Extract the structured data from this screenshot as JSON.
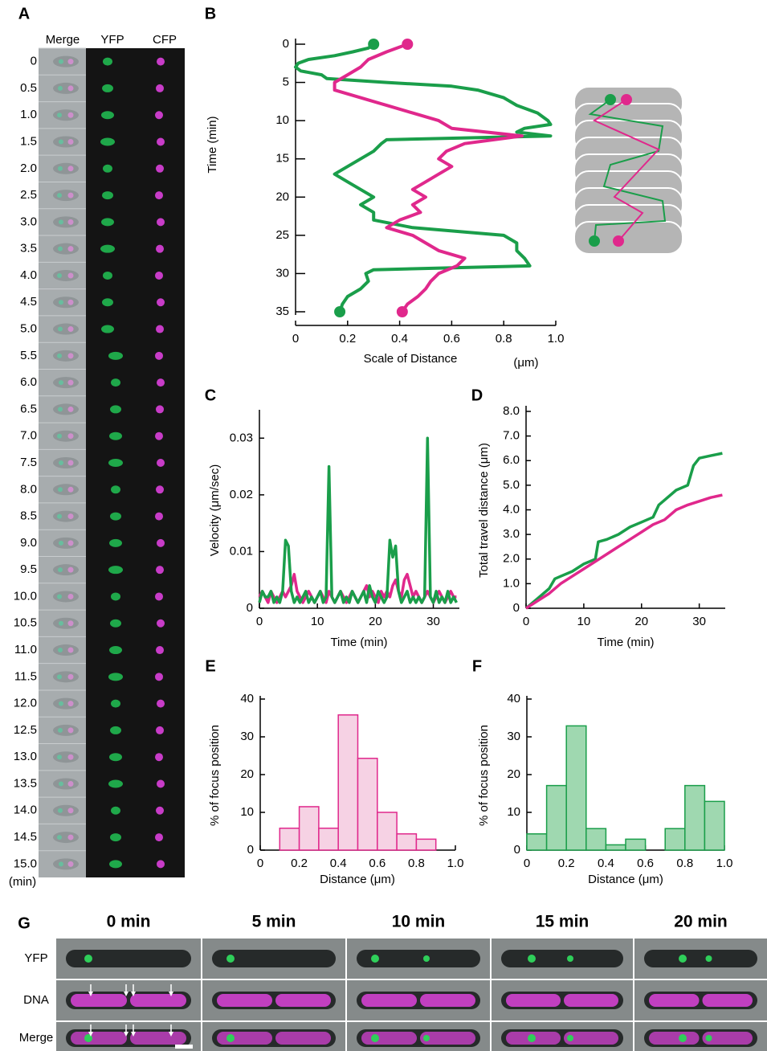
{
  "panel_labels": [
    "A",
    "B",
    "C",
    "D",
    "E",
    "F",
    "G"
  ],
  "panel_a": {
    "columns": [
      "Merge",
      "YFP",
      "CFP"
    ],
    "times": [
      "0",
      "0.5",
      "1.0",
      "1.5",
      "2.0",
      "2.5",
      "3.0",
      "3.5",
      "4.0",
      "4.5",
      "5.0",
      "5.5",
      "6.0",
      "6.5",
      "7.0",
      "7.5",
      "8.0",
      "8.5",
      "9.0",
      "9.5",
      "10.0",
      "10.5",
      "11.0",
      "11.5",
      "12.0",
      "12.5",
      "13.0",
      "13.5",
      "14.0",
      "14.5",
      "15.0"
    ],
    "unit": "(min)"
  },
  "panel_g": {
    "times": [
      "0 min",
      "5 min",
      "10 min",
      "15 min",
      "20 min"
    ],
    "rows": [
      "YFP",
      "DNA",
      "Merge"
    ]
  },
  "chart_data": [
    {
      "type": "trajectory",
      "ylabel": "Time (min)",
      "xlabel": "Scale of Distance",
      "x_unit": "(μm)",
      "xlim": [
        0,
        1
      ],
      "xticks": [
        0,
        0.2,
        0.4,
        0.6,
        0.8,
        {
          "value": 1,
          "label": "1.0"
        }
      ],
      "ylim": [
        0,
        35
      ],
      "y_reversed": true,
      "yticks": [
        0,
        5,
        10,
        15,
        20,
        25,
        30,
        35
      ],
      "series": [
        {
          "color": "#1a9e4a",
          "y": [
            0,
            0.5,
            1,
            1.5,
            2,
            2.5,
            3,
            3.5,
            4,
            4.5,
            5,
            5.5,
            6,
            7,
            8,
            9,
            10,
            10.5,
            11,
            11.5,
            12,
            12.5,
            13,
            14,
            15,
            16,
            17,
            18,
            19,
            20,
            21,
            22,
            23,
            24,
            25,
            26,
            27,
            28,
            29,
            29.5,
            30,
            31,
            32,
            33,
            34,
            35
          ],
          "x": [
            0.3,
            0.28,
            0.22,
            0.15,
            0.05,
            0.01,
            0.0,
            0.02,
            0.1,
            0.12,
            0.35,
            0.6,
            0.7,
            0.8,
            0.85,
            0.93,
            0.97,
            0.98,
            0.88,
            0.85,
            0.98,
            0.35,
            0.33,
            0.3,
            0.25,
            0.2,
            0.15,
            0.2,
            0.25,
            0.3,
            0.25,
            0.3,
            0.3,
            0.45,
            0.8,
            0.85,
            0.85,
            0.88,
            0.9,
            0.3,
            0.27,
            0.28,
            0.25,
            0.2,
            0.18,
            0.17
          ]
        },
        {
          "color": "#e0288c",
          "y": [
            0,
            1,
            2,
            3,
            4,
            5,
            6,
            7,
            8,
            9,
            10,
            11,
            12,
            13,
            14,
            15,
            16,
            17,
            18,
            19,
            20,
            21,
            22,
            23,
            24,
            25,
            26,
            27,
            28,
            29,
            30,
            31,
            32,
            33,
            34,
            35
          ],
          "x": [
            0.43,
            0.35,
            0.28,
            0.25,
            0.2,
            0.15,
            0.15,
            0.25,
            0.35,
            0.45,
            0.55,
            0.6,
            0.87,
            0.65,
            0.58,
            0.55,
            0.6,
            0.55,
            0.5,
            0.45,
            0.5,
            0.45,
            0.48,
            0.4,
            0.35,
            0.45,
            0.5,
            0.55,
            0.65,
            0.62,
            0.55,
            0.52,
            0.5,
            0.47,
            0.43,
            0.41
          ]
        }
      ]
    },
    {
      "type": "line",
      "ylabel": "Velocity  (μm/sec)",
      "xlabel": "Time (min)",
      "xlim": [
        0,
        34.5
      ],
      "xticks": [
        0,
        10,
        20,
        30
      ],
      "ylim": [
        0,
        0.035
      ],
      "yticks": [
        0,
        0.01,
        0.02,
        0.03
      ],
      "series": [
        {
          "color": "#e0288c",
          "x": [
            0,
            0.5,
            1,
            1.5,
            2,
            2.5,
            3,
            3.5,
            4,
            4.5,
            5,
            5.5,
            6,
            6.5,
            7,
            7.5,
            8,
            8.5,
            9,
            9.5,
            10,
            10.5,
            11,
            11.5,
            12,
            12.5,
            13,
            13.5,
            14,
            14.5,
            15,
            15.5,
            16,
            16.5,
            17,
            17.5,
            18,
            18.5,
            19,
            19.5,
            20,
            20.5,
            21,
            21.5,
            22,
            22.5,
            23,
            23.5,
            24,
            24.5,
            25,
            25.5,
            26,
            26.5,
            27,
            27.5,
            28,
            28.5,
            29,
            29.5,
            30,
            30.5,
            31,
            31.5,
            32,
            32.5,
            33,
            33.5,
            34
          ],
          "values": [
            0.002,
            0.003,
            0.002,
            0.001,
            0.003,
            0.002,
            0.001,
            0.002,
            0.003,
            0.002,
            0.003,
            0.004,
            0.006,
            0.003,
            0.002,
            0.001,
            0.002,
            0.003,
            0.002,
            0.001,
            0.002,
            0.003,
            0.002,
            0.001,
            0.003,
            0.002,
            0.001,
            0.002,
            0.003,
            0.002,
            0.001,
            0.002,
            0.003,
            0.002,
            0.001,
            0.002,
            0.003,
            0.004,
            0.002,
            0.003,
            0.002,
            0.001,
            0.003,
            0.002,
            0.003,
            0.002,
            0.004,
            0.005,
            0.003,
            0.002,
            0.005,
            0.006,
            0.004,
            0.002,
            0.003,
            0.002,
            0.001,
            0.002,
            0.003,
            0.002,
            0.001,
            0.002,
            0.003,
            0.002,
            0.001,
            0.002,
            0.003,
            0.002,
            0.002
          ]
        },
        {
          "color": "#1a9e4a",
          "x": [
            0,
            0.5,
            1,
            1.5,
            2,
            2.5,
            3,
            3.5,
            4,
            4.5,
            5,
            5.5,
            6,
            6.5,
            7,
            7.5,
            8,
            8.5,
            9,
            9.5,
            10,
            10.5,
            11,
            11.5,
            12,
            12.5,
            13,
            13.5,
            14,
            14.5,
            15,
            15.5,
            16,
            16.5,
            17,
            17.5,
            18,
            18.5,
            19,
            19.5,
            20,
            20.5,
            21,
            21.5,
            22,
            22.5,
            23,
            23.5,
            24,
            24.5,
            25,
            25.5,
            26,
            26.5,
            27,
            27.5,
            28,
            28.5,
            29,
            29.5,
            30,
            30.5,
            31,
            31.5,
            32,
            32.5,
            33,
            33.5,
            34
          ],
          "values": [
            0.001,
            0.003,
            0.002,
            0.002,
            0.003,
            0.001,
            0.002,
            0.001,
            0.003,
            0.012,
            0.011,
            0.003,
            0.001,
            0.002,
            0.001,
            0.002,
            0.003,
            0.001,
            0.002,
            0.001,
            0.002,
            0.003,
            0.001,
            0.002,
            0.025,
            0.002,
            0.001,
            0.002,
            0.003,
            0.001,
            0.002,
            0.001,
            0.003,
            0.002,
            0.001,
            0.002,
            0.003,
            0.001,
            0.004,
            0.002,
            0.001,
            0.003,
            0.002,
            0.001,
            0.002,
            0.012,
            0.009,
            0.011,
            0.003,
            0.001,
            0.002,
            0.003,
            0.001,
            0.002,
            0.001,
            0.002,
            0.001,
            0.002,
            0.03,
            0.002,
            0.001,
            0.003,
            0.001,
            0.002,
            0.001,
            0.003,
            0.001,
            0.002,
            0.001
          ]
        }
      ]
    },
    {
      "type": "line",
      "ylabel": "Total travel distance  (μm)",
      "xlabel": "Time (min)",
      "xlim": [
        0,
        34.5
      ],
      "xticks": [
        0,
        10,
        20,
        30
      ],
      "ylim": [
        0,
        8
      ],
      "yticks": [
        0,
        {
          "value": 1,
          "label": "1.0"
        },
        {
          "value": 2,
          "label": "2.0"
        },
        {
          "value": 3,
          "label": "3.0"
        },
        {
          "value": 4,
          "label": "4.0"
        },
        {
          "value": 5,
          "label": "5.0"
        },
        {
          "value": 6,
          "label": "6.0"
        },
        {
          "value": 7,
          "label": "7.0"
        },
        {
          "value": 8,
          "label": "8.0"
        }
      ],
      "series": [
        {
          "color": "#1a9e4a",
          "x": [
            0,
            2,
            4,
            5,
            6,
            8,
            10,
            12,
            12.5,
            14,
            16,
            18,
            20,
            22,
            23,
            24,
            26,
            28,
            29,
            30,
            32,
            34
          ],
          "values": [
            0,
            0.4,
            0.8,
            1.2,
            1.3,
            1.5,
            1.8,
            2.0,
            2.7,
            2.8,
            3.0,
            3.3,
            3.5,
            3.7,
            4.2,
            4.4,
            4.8,
            5.0,
            5.8,
            6.1,
            6.2,
            6.3
          ]
        },
        {
          "color": "#e0288c",
          "x": [
            0,
            2,
            4,
            6,
            8,
            10,
            12,
            14,
            16,
            18,
            20,
            22,
            24,
            26,
            28,
            30,
            32,
            34
          ],
          "values": [
            0,
            0.3,
            0.6,
            1.0,
            1.3,
            1.6,
            1.9,
            2.2,
            2.5,
            2.8,
            3.1,
            3.4,
            3.6,
            4.0,
            4.2,
            4.35,
            4.5,
            4.6
          ]
        }
      ]
    },
    {
      "type": "histogram",
      "ylabel": "% of focus position",
      "xlabel": "Distance (μm)",
      "xlim": [
        0,
        1
      ],
      "xticks": [
        0,
        0.2,
        0.4,
        0.6,
        0.8,
        {
          "value": 1,
          "label": "1.0"
        }
      ],
      "ylim": [
        0,
        40
      ],
      "yticks": [
        0,
        10,
        20,
        30,
        40
      ],
      "color": "#f6d2e4",
      "edgecolor": "#e0288c",
      "bins": [
        0.1,
        0.2,
        0.3,
        0.4,
        0.5,
        0.6,
        0.7,
        0.8,
        0.9
      ],
      "values": [
        5.8,
        11.5,
        5.8,
        35.8,
        24.3,
        10,
        4.3,
        2.9
      ]
    },
    {
      "type": "histogram",
      "ylabel": "% of focus position",
      "xlabel": "Distance (μm)",
      "xlim": [
        0,
        1
      ],
      "xticks": [
        0,
        0.2,
        0.4,
        0.6,
        0.8,
        {
          "value": 1,
          "label": "1.0"
        }
      ],
      "ylim": [
        0,
        40
      ],
      "yticks": [
        0,
        10,
        20,
        30,
        40
      ],
      "color": "#9fd8b0",
      "edgecolor": "#1a9e4a",
      "bins": [
        0,
        0.1,
        0.2,
        0.3,
        0.4,
        0.5,
        0.6,
        0.7,
        0.8,
        0.9,
        1.0
      ],
      "values": [
        4.3,
        17.1,
        32.9,
        5.7,
        1.4,
        2.9,
        0,
        5.7,
        17.1,
        12.9
      ]
    }
  ]
}
